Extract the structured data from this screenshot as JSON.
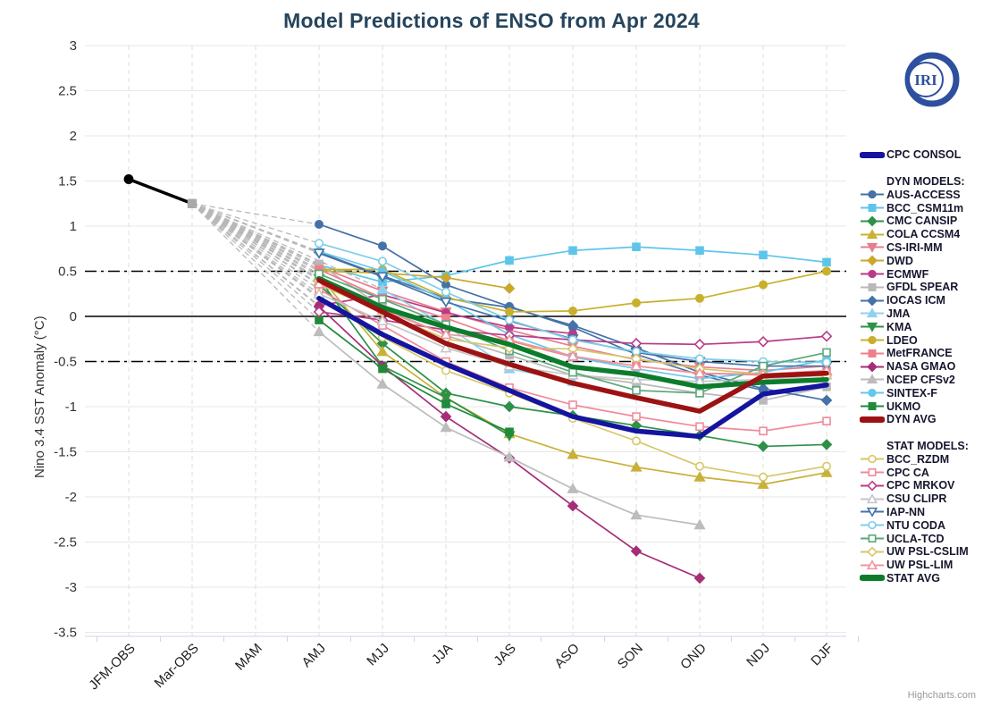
{
  "title": "Model Predictions of ENSO from Apr 2024",
  "logo_text": "IRI",
  "credit": "Highcharts.com",
  "y_axis": {
    "label": "Nino 3.4 SST Anomaly (°C)",
    "min": -3.5,
    "max": 3,
    "tick_interval": 0.5,
    "ticks": [
      {
        "value": 3,
        "label": "3"
      },
      {
        "value": 2.5,
        "label": "2.5"
      },
      {
        "value": 2,
        "label": "2"
      },
      {
        "value": 1.5,
        "label": "1.5"
      },
      {
        "value": 1,
        "label": "1"
      },
      {
        "value": 0.5,
        "label": "0.5"
      },
      {
        "value": 0,
        "label": "0"
      },
      {
        "value": -0.5,
        "label": "-0.5"
      },
      {
        "value": -1,
        "label": "-1"
      },
      {
        "value": -1.5,
        "label": "-1.5"
      },
      {
        "value": -2,
        "label": "-2"
      },
      {
        "value": -2.5,
        "label": "-2.5"
      },
      {
        "value": -3,
        "label": "-3"
      },
      {
        "value": -3.5,
        "label": "-3.5"
      }
    ]
  },
  "x_axis": {
    "categories": [
      "JFM-OBS",
      "Mar-OBS",
      "MAM",
      "AMJ",
      "MJJ",
      "JJA",
      "JAS",
      "ASO",
      "SON",
      "OND",
      "NDJ",
      "DJF"
    ]
  },
  "legend": {
    "consol_label": "CPC CONSOL",
    "dyn_header": "DYN MODELS:",
    "stat_header": "STAT MODELS:"
  },
  "chart_data": {
    "type": "line",
    "categories": [
      "JFM-OBS",
      "Mar-OBS",
      "MAM",
      "AMJ",
      "MJJ",
      "JJA",
      "JAS",
      "ASO",
      "SON",
      "OND",
      "NDJ",
      "DJF"
    ],
    "ylim": [
      -3.5,
      3
    ],
    "threshold_lines": [
      0.5,
      -0.5
    ],
    "zero_line": 0,
    "grid": true,
    "legend_position": "right",
    "fan_color": "#b8b8b8",
    "observations": {
      "name": "Observations",
      "color": "#000000",
      "values": [
        1.52,
        1.25,
        null,
        null,
        null,
        null,
        null,
        null,
        null,
        null,
        null,
        null
      ]
    },
    "series": [
      {
        "name": "CPC CONSOL",
        "group": "consol",
        "color": "#1414a0",
        "marker": null,
        "open": false,
        "width": 5.5,
        "values": [
          null,
          null,
          null,
          0.2,
          -0.2,
          -0.53,
          -0.82,
          -1.11,
          -1.27,
          -1.33,
          -0.86,
          -0.76
        ]
      },
      {
        "name": "AUS-ACCESS",
        "group": "dyn",
        "color": "#4572a7",
        "marker": "circle",
        "open": false,
        "width": 1.7,
        "values": [
          null,
          null,
          null,
          1.02,
          0.78,
          0.35,
          0.11,
          -0.12,
          -0.42,
          -0.65,
          -0.82,
          null
        ]
      },
      {
        "name": "BCC_CSM11m",
        "group": "dyn",
        "color": "#5ec5ea",
        "marker": "square",
        "open": false,
        "width": 1.7,
        "values": [
          null,
          null,
          null,
          0.57,
          0.38,
          0.45,
          0.62,
          0.73,
          0.77,
          0.73,
          0.68,
          0.6
        ]
      },
      {
        "name": "CMC CANSIP",
        "group": "dyn",
        "color": "#2e9148",
        "marker": "diamond",
        "open": false,
        "width": 1.7,
        "values": [
          null,
          null,
          null,
          0.35,
          -0.3,
          -0.85,
          -1.0,
          -1.1,
          -1.21,
          -1.32,
          -1.44,
          -1.42
        ]
      },
      {
        "name": "COLA CCSM4",
        "group": "dyn",
        "color": "#c9b038",
        "marker": "triangle",
        "open": false,
        "width": 1.7,
        "values": [
          null,
          null,
          null,
          0.45,
          -0.39,
          -0.9,
          -1.3,
          -1.53,
          -1.67,
          -1.78,
          -1.86,
          -1.73
        ]
      },
      {
        "name": "CS-IRI-MM",
        "group": "dyn",
        "color": "#e77d8f",
        "marker": "triangle-down",
        "open": false,
        "width": 1.7,
        "values": [
          null,
          null,
          null,
          0.55,
          0.28,
          0.05,
          -0.15,
          -0.33,
          -0.48,
          -0.56,
          -0.6,
          -0.55
        ]
      },
      {
        "name": "DWD",
        "group": "dyn",
        "color": "#c9a82c",
        "marker": "diamond",
        "open": false,
        "width": 1.7,
        "values": [
          null,
          null,
          null,
          0.5,
          0.48,
          0.43,
          0.31,
          null,
          null,
          null,
          null,
          null
        ]
      },
      {
        "name": "ECMWF",
        "group": "dyn",
        "color": "#b93b86",
        "marker": "circle",
        "open": false,
        "width": 1.7,
        "values": [
          null,
          null,
          null,
          0.12,
          0.24,
          0.04,
          -0.12,
          -0.19,
          null,
          null,
          null,
          null
        ]
      },
      {
        "name": "GFDL SPEAR",
        "group": "dyn",
        "color": "#b9b9b9",
        "marker": "square",
        "open": false,
        "width": 1.7,
        "values": [
          null,
          null,
          null,
          0.58,
          0.1,
          -0.21,
          -0.43,
          -0.65,
          -0.74,
          -0.85,
          -0.93,
          -0.78
        ]
      },
      {
        "name": "IOCAS ICM",
        "group": "dyn",
        "color": "#4572a7",
        "marker": "diamond",
        "open": false,
        "width": 1.7,
        "values": [
          null,
          null,
          null,
          0.71,
          0.45,
          0.2,
          0.1,
          -0.1,
          -0.35,
          -0.62,
          -0.8,
          -0.93
        ]
      },
      {
        "name": "JMA",
        "group": "dyn",
        "color": "#8fd2ee",
        "marker": "triangle",
        "open": false,
        "width": 1.7,
        "values": [
          null,
          null,
          null,
          null,
          0.3,
          -0.1,
          -0.58,
          -0.72,
          null,
          null,
          null,
          null
        ]
      },
      {
        "name": "KMA",
        "group": "dyn",
        "color": "#2e9148",
        "marker": "triangle-down",
        "open": false,
        "width": 1.7,
        "values": [
          null,
          null,
          null,
          0.42,
          -0.55,
          -0.9,
          -1.32,
          null,
          null,
          null,
          null,
          null
        ]
      },
      {
        "name": "LDEO",
        "group": "dyn",
        "color": "#c9b02c",
        "marker": "circle",
        "open": false,
        "width": 1.7,
        "values": [
          null,
          null,
          null,
          0.52,
          0.52,
          0.21,
          0.05,
          0.06,
          0.15,
          0.2,
          0.35,
          0.5
        ]
      },
      {
        "name": "MetFRANCE",
        "group": "dyn",
        "color": "#ef7f8d",
        "marker": "square",
        "open": false,
        "width": 1.7,
        "values": [
          null,
          null,
          null,
          0.52,
          0.2,
          -0.02,
          -0.27,
          -0.45,
          -0.55,
          -0.63,
          -0.65,
          -0.6
        ]
      },
      {
        "name": "NASA GMAO",
        "group": "dyn",
        "color": "#a62d77",
        "marker": "diamond",
        "open": false,
        "width": 1.7,
        "values": [
          null,
          null,
          null,
          0.11,
          -0.55,
          -1.11,
          -1.57,
          -2.1,
          -2.6,
          -2.9,
          null,
          null
        ]
      },
      {
        "name": "NCEP CFSv2",
        "group": "dyn",
        "color": "#bcbcbc",
        "marker": "triangle",
        "open": false,
        "width": 1.7,
        "values": [
          null,
          null,
          null,
          -0.17,
          -0.75,
          -1.23,
          -1.56,
          -1.91,
          -2.2,
          -2.31,
          null,
          null
        ]
      },
      {
        "name": "SINTEX-F",
        "group": "dyn",
        "color": "#66c7ec",
        "marker": "circle",
        "open": false,
        "width": 1.7,
        "values": [
          null,
          null,
          null,
          0.72,
          0.5,
          0.18,
          -0.2,
          -0.45,
          -0.58,
          -0.69,
          -0.62,
          -0.48
        ]
      },
      {
        "name": "UKMO",
        "group": "dyn",
        "color": "#1e8a3a",
        "marker": "square",
        "open": false,
        "width": 1.7,
        "values": [
          null,
          null,
          null,
          -0.04,
          -0.58,
          -0.97,
          -1.28,
          null,
          null,
          null,
          null,
          null
        ]
      },
      {
        "name": "DYN AVG",
        "group": "dyn_avg",
        "color": "#9c1212",
        "marker": null,
        "open": false,
        "width": 5.5,
        "values": [
          null,
          null,
          null,
          0.4,
          0.05,
          -0.3,
          -0.53,
          -0.74,
          -0.9,
          -1.05,
          -0.66,
          -0.63
        ]
      },
      {
        "name": "BCC_RZDM",
        "group": "stat",
        "color": "#d6c767",
        "marker": "circle",
        "open": true,
        "width": 1.7,
        "values": [
          null,
          null,
          null,
          0.22,
          -0.23,
          -0.6,
          -0.85,
          -1.13,
          -1.38,
          -1.66,
          -1.78,
          -1.66
        ]
      },
      {
        "name": "CPC CA",
        "group": "stat",
        "color": "#f18a9b",
        "marker": "square",
        "open": true,
        "width": 1.7,
        "values": [
          null,
          null,
          null,
          0.3,
          -0.1,
          -0.5,
          -0.79,
          -0.98,
          -1.11,
          -1.22,
          -1.27,
          -1.16
        ]
      },
      {
        "name": "CPC MRKOV",
        "group": "stat",
        "color": "#b93b86",
        "marker": "diamond",
        "open": true,
        "width": 1.7,
        "values": [
          null,
          null,
          null,
          0.05,
          -0.04,
          -0.15,
          -0.21,
          -0.26,
          -0.3,
          -0.31,
          -0.28,
          -0.22
        ]
      },
      {
        "name": "CSU CLIPR",
        "group": "stat",
        "color": "#c6c6c6",
        "marker": "triangle",
        "open": true,
        "width": 1.7,
        "values": [
          null,
          null,
          null,
          0.25,
          -0.05,
          -0.35,
          -0.55,
          -0.65,
          -0.7,
          -0.72,
          -0.7,
          -0.65
        ]
      },
      {
        "name": "IAP-NN",
        "group": "stat",
        "color": "#4572a7",
        "marker": "triangle-down",
        "open": true,
        "width": 1.7,
        "values": [
          null,
          null,
          null,
          0.7,
          0.44,
          0.16,
          -0.05,
          -0.25,
          -0.4,
          -0.5,
          -0.55,
          -0.55
        ]
      },
      {
        "name": "NTU CODA",
        "group": "stat",
        "color": "#7fcde8",
        "marker": "circle",
        "open": true,
        "width": 1.7,
        "values": [
          null,
          null,
          null,
          0.81,
          0.61,
          0.27,
          -0.04,
          -0.26,
          -0.39,
          -0.47,
          -0.5,
          -0.51
        ]
      },
      {
        "name": "UCLA-TCD",
        "group": "stat",
        "color": "#5aa87a",
        "marker": "square",
        "open": true,
        "width": 1.7,
        "values": [
          null,
          null,
          null,
          0.47,
          0.19,
          -0.09,
          -0.38,
          -0.62,
          -0.82,
          -0.85,
          -0.55,
          -0.4
        ]
      },
      {
        "name": "UW PSL-CSLIM",
        "group": "stat",
        "color": "#d6c767",
        "marker": "diamond",
        "open": true,
        "width": 1.7,
        "values": [
          null,
          null,
          null,
          0.35,
          0.05,
          -0.25,
          -0.35,
          -0.36,
          -0.47,
          -0.58,
          -0.64,
          -0.66
        ]
      },
      {
        "name": "UW PSL-LIM",
        "group": "stat",
        "color": "#f1949b",
        "marker": "triangle",
        "open": true,
        "width": 1.7,
        "values": [
          null,
          null,
          null,
          0.36,
          0.07,
          -0.2,
          -0.26,
          -0.44,
          -0.55,
          -0.63,
          -0.64,
          -0.6
        ]
      },
      {
        "name": "STAT AVG",
        "group": "stat_avg",
        "color": "#0c7c2c",
        "marker": null,
        "open": false,
        "width": 5.5,
        "values": [
          null,
          null,
          null,
          0.42,
          0.1,
          -0.12,
          -0.31,
          -0.56,
          -0.64,
          -0.78,
          -0.73,
          -0.7
        ]
      }
    ]
  }
}
